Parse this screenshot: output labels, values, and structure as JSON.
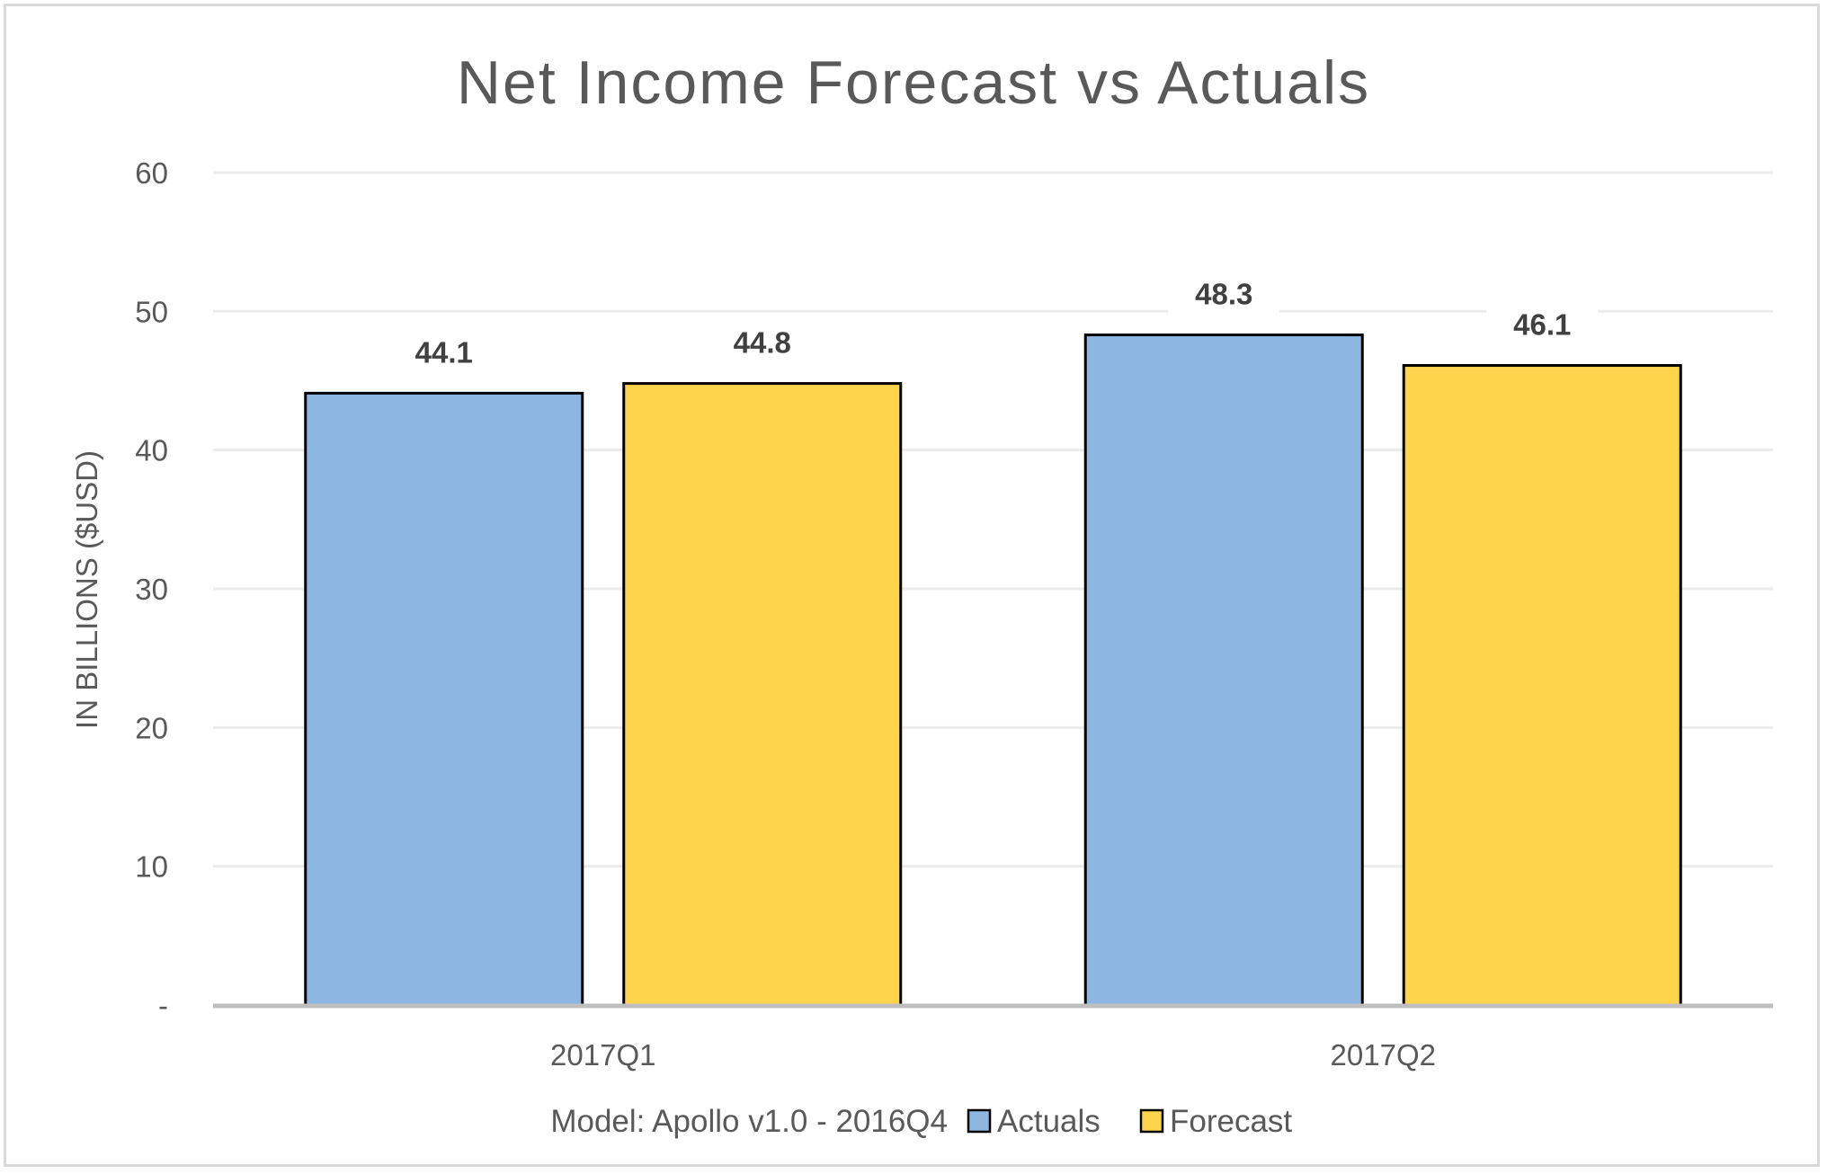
{
  "chart_data": {
    "type": "bar",
    "title": "Net Income Forecast vs Actuals",
    "xlabel": "",
    "ylabel": "IN BILLIONS ($USD)",
    "categories": [
      "2017Q1",
      "2017Q2"
    ],
    "series": [
      {
        "name": "Actuals",
        "values": [
          44.1,
          48.3
        ],
        "labels": [
          "44.1",
          "48.3"
        ],
        "color": "#8db7e0"
      },
      {
        "name": "Forecast",
        "values": [
          44.8,
          46.1
        ],
        "labels": [
          "44.8",
          "46.1"
        ],
        "color": "#fed44d"
      }
    ],
    "ylim": [
      0,
      60
    ],
    "yticks": [
      0,
      10,
      20,
      30,
      40,
      50,
      60
    ],
    "ytick_labels": [
      "-",
      "10",
      "20",
      "30",
      "40",
      "50",
      "60"
    ],
    "grid": true,
    "legend": {
      "placement": "bottom",
      "prefix": "Model: Apollo v1.0 - 2016Q4",
      "entries": [
        "Actuals",
        "Forecast"
      ]
    },
    "colors": {
      "gridline": "#ebebeb",
      "axis": "#bfbfbf",
      "bar_outline": "#000000"
    }
  }
}
